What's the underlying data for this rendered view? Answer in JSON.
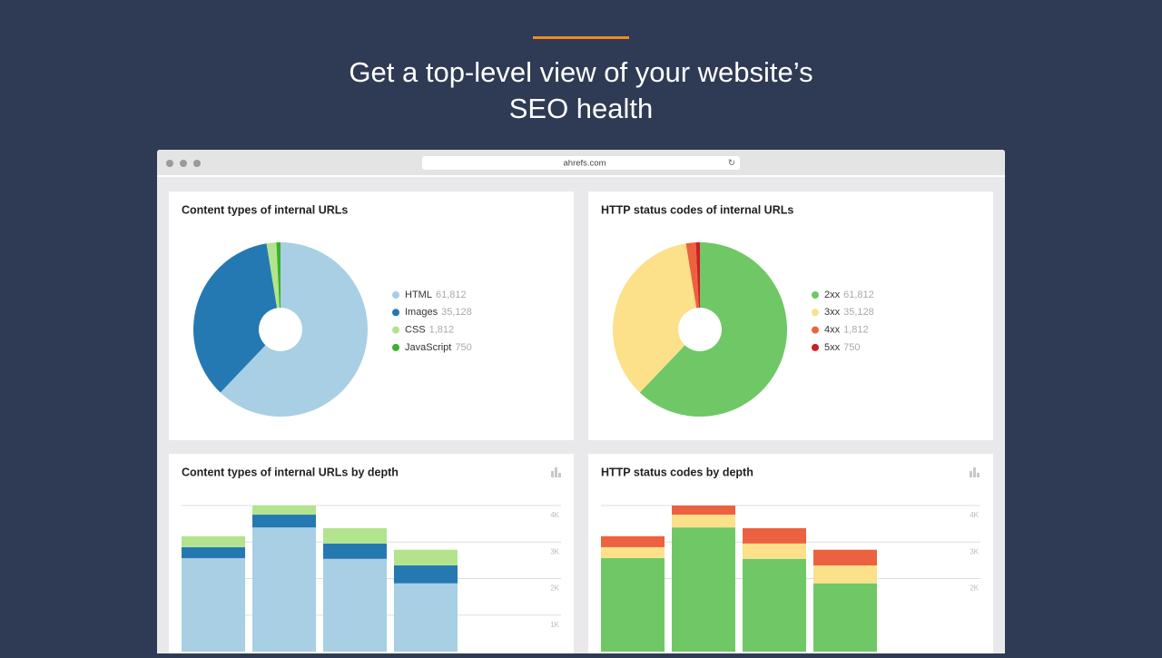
{
  "header": {
    "title_lines": [
      "Get a top-level view of your website’s",
      "SEO health"
    ]
  },
  "browser": {
    "url": "ahrefs.com"
  },
  "chart_data": [
    {
      "type": "pie",
      "title": "Content types of internal URLs",
      "categories": [
        "HTML",
        "Images",
        "CSS",
        "JavaScript"
      ],
      "values": [
        61812,
        35128,
        1812,
        750
      ],
      "value_labels": [
        "61,812",
        "35,128",
        "1,812",
        "750"
      ],
      "colors": [
        "#a8cfe3",
        "#2479b3",
        "#b3e48d",
        "#3bb02c"
      ]
    },
    {
      "type": "pie",
      "title": "HTTP status codes of internal URLs",
      "categories": [
        "2xx",
        "3xx",
        "4xx",
        "5xx"
      ],
      "values": [
        61812,
        35128,
        1812,
        750
      ],
      "value_labels": [
        "61,812",
        "35,128",
        "1,812",
        "750"
      ],
      "colors": [
        "#6fc865",
        "#fce08a",
        "#ec6240",
        "#cc1f26"
      ]
    },
    {
      "type": "bar",
      "stacked": true,
      "title": "Content types of internal URLs by depth",
      "categories": [
        null,
        null,
        null,
        null
      ],
      "series": [
        {
          "color": "#a8cfe3",
          "values": [
            2560,
            3400,
            2540,
            1870
          ]
        },
        {
          "color": "#2479b3",
          "values": [
            300,
            350,
            420,
            490
          ]
        },
        {
          "color": "#b3e48d",
          "values": [
            300,
            250,
            420,
            430
          ]
        }
      ],
      "ylim": [
        0,
        4000
      ],
      "yticks": [
        {
          "value": 1000,
          "label": "1K"
        },
        {
          "value": 2000,
          "label": "2K"
        },
        {
          "value": 3000,
          "label": "3K"
        },
        {
          "value": 4000,
          "label": "4K"
        }
      ],
      "grid": true
    },
    {
      "type": "bar",
      "stacked": true,
      "title": "HTTP status codes by depth",
      "categories": [
        null,
        null,
        null,
        null
      ],
      "series": [
        {
          "color": "#6fc865",
          "values": [
            2560,
            3400,
            2540,
            1870
          ]
        },
        {
          "color": "#fce08a",
          "values": [
            300,
            350,
            420,
            490
          ]
        },
        {
          "color": "#ec6240",
          "values": [
            300,
            250,
            420,
            430
          ]
        }
      ],
      "ylim": [
        0,
        4000
      ],
      "yticks": [
        {
          "value": 2000,
          "label": "2K"
        },
        {
          "value": 3000,
          "label": "3K"
        },
        {
          "value": 4000,
          "label": "4K"
        }
      ],
      "grid": true
    }
  ]
}
